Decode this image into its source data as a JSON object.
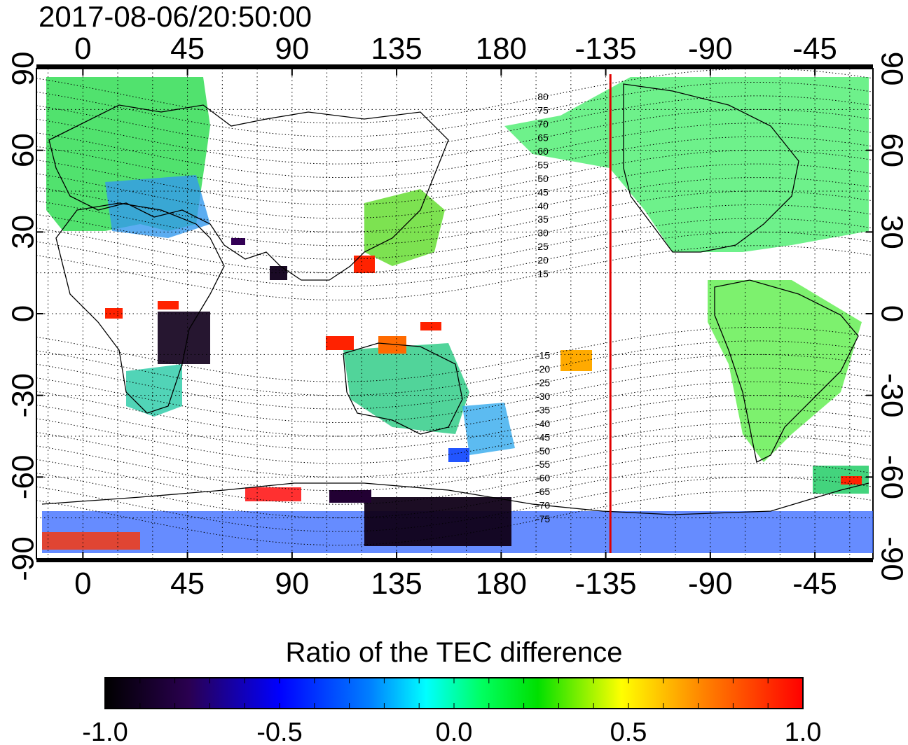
{
  "title": "2017-08-06/20:50:00",
  "map": {
    "projection": "equirectangular",
    "lon_range": [
      -20,
      340
    ],
    "lat_range": [
      -90,
      90
    ],
    "lon_ticks": [
      0,
      45,
      90,
      135,
      180,
      225,
      270,
      315
    ],
    "lon_tick_labels": [
      "0",
      "45",
      "90",
      "135",
      "180",
      "-135",
      "-90",
      "-45"
    ],
    "lat_ticks": [
      90,
      60,
      30,
      0,
      -30,
      -60,
      -90
    ],
    "lat_tick_labels": [
      "90",
      "60",
      "30",
      "0",
      "-30",
      "-60",
      "-90"
    ],
    "grid": "dotted every 15 degrees",
    "terminator_line": {
      "lon": -133,
      "color": "#e00000"
    },
    "mlat_labels": [
      "80",
      "75",
      "70",
      "65",
      "60",
      "55",
      "50",
      "45",
      "40",
      "35",
      "30",
      "25",
      "20",
      "15",
      "-15",
      "-20",
      "-25",
      "-30",
      "-35",
      "-40",
      "-45",
      "-50",
      "-55",
      "-60",
      "-65",
      "-70",
      "-75"
    ]
  },
  "colorbar": {
    "title": "Ratio of the TEC difference",
    "min": -1.0,
    "max": 1.0,
    "tick_labels": [
      "-1.0",
      "-0.5",
      "0.0",
      "0.5",
      "1.0"
    ],
    "colors": [
      "#000000",
      "#4a0070",
      "#0000ff",
      "#00ffff",
      "#00ff00",
      "#ffff00",
      "#ff8000",
      "#ff0000"
    ]
  }
}
